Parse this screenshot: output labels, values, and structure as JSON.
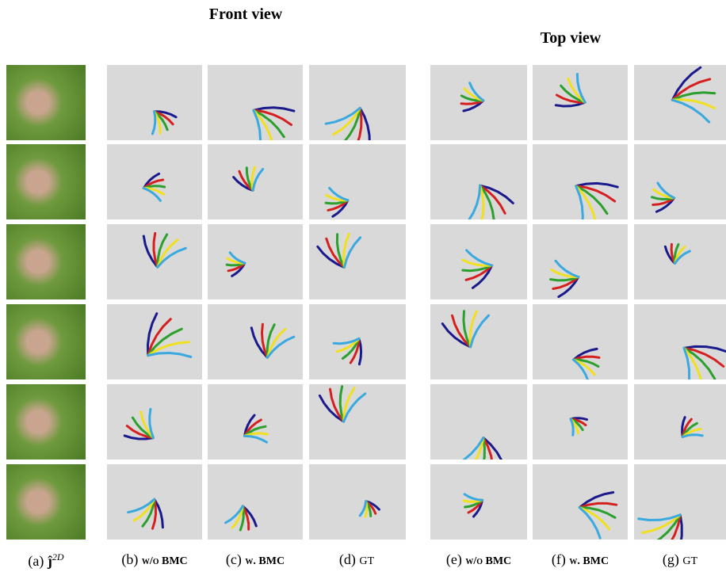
{
  "figure": {
    "headers": {
      "front": "Front view",
      "top": "Top view"
    },
    "captions": [
      {
        "label": "(a)",
        "text": "ĵ",
        "sup": "2D"
      },
      {
        "label": "(b)",
        "text": "w/o BMC"
      },
      {
        "label": "(c)",
        "text": "w. BMC"
      },
      {
        "label": "(d)",
        "text": "GT"
      },
      {
        "label": "(e)",
        "text": "w/o BMC"
      },
      {
        "label": "(f)",
        "text": "w. BMC"
      },
      {
        "label": "(g)",
        "text": "GT"
      }
    ]
  }
}
